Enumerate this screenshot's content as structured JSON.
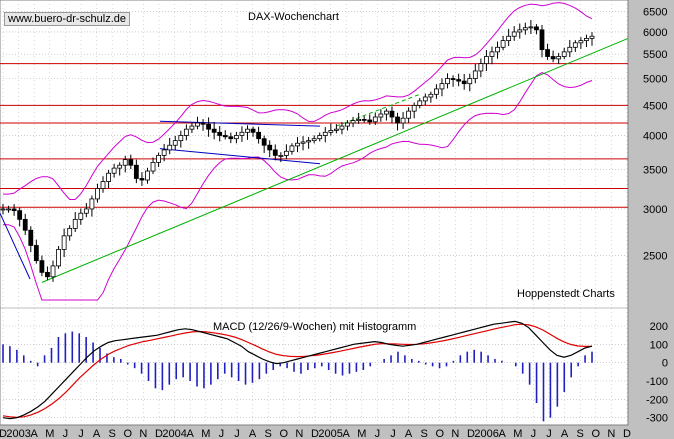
{
  "source_label": "www.buero-dr-schulz.de",
  "chart_data": {
    "type": "line",
    "title": "DAX-Wochenchart",
    "credit": "Hoppenstedt Charts",
    "macd_title": "MACD (12/26/9-Wochen) mit Histogramm",
    "y_scale": "log",
    "ylim": [
      2100,
      6800
    ],
    "y_ticks": [
      6500,
      6000,
      5500,
      5000,
      4500,
      4000,
      3500,
      3000,
      2500
    ],
    "macd_ylim": [
      -340,
      260
    ],
    "macd_ticks": [
      200,
      100,
      0,
      -100,
      -200,
      -300
    ],
    "x_ticks": [
      "D",
      "2003",
      "A",
      "M",
      "J",
      "J",
      "A",
      "S",
      "O",
      "N",
      "D",
      "2004",
      "A",
      "M",
      "J",
      "J",
      "A",
      "S",
      "O",
      "N",
      "D",
      "2005",
      "A",
      "M",
      "J",
      "J",
      "A",
      "S",
      "O",
      "N",
      "D",
      "2006",
      "A",
      "M",
      "J",
      "J",
      "A",
      "S",
      "O",
      "N",
      "D"
    ],
    "horizontal_lines": [
      5300,
      4500,
      4200,
      3650,
      3250,
      3020
    ],
    "price_weekly": [
      3000,
      3000,
      2980,
      2880,
      2760,
      2600,
      2450,
      2340,
      2300,
      2400,
      2560,
      2700,
      2780,
      2880,
      2950,
      3000,
      3120,
      3250,
      3340,
      3450,
      3520,
      3560,
      3640,
      3560,
      3380,
      3360,
      3480,
      3600,
      3700,
      3780,
      3850,
      3920,
      4000,
      4100,
      4150,
      4200,
      4180,
      4100,
      4050,
      4000,
      3980,
      3950,
      4000,
      4050,
      4100,
      4050,
      3950,
      3850,
      3780,
      3700,
      3700,
      3760,
      3840,
      3880,
      3900,
      3920,
      3950,
      4000,
      4050,
      4080,
      4100,
      4150,
      4200,
      4240,
      4260,
      4250,
      4220,
      4300,
      4350,
      4400,
      4300,
      4200,
      4280,
      4400,
      4500,
      4580,
      4650,
      4700,
      4800,
      4900,
      5000,
      4980,
      4950,
      4900,
      5000,
      5150,
      5300,
      5450,
      5550,
      5650,
      5800,
      5900,
      6000,
      6050,
      6100,
      6120,
      6050,
      5600,
      5450,
      5400,
      5450,
      5550,
      5650,
      5750,
      5800,
      5850,
      5900
    ],
    "macd_weekly": [
      -300,
      -305,
      -300,
      -285,
      -265,
      -240,
      -210,
      -170,
      -130,
      -90,
      -50,
      -10,
      30,
      65,
      90,
      110,
      120,
      125,
      130,
      135,
      140,
      145,
      150,
      160,
      170,
      180,
      185,
      180,
      170,
      160,
      150,
      140,
      130,
      110,
      90,
      60,
      40,
      20,
      5,
      -5,
      0,
      10,
      20,
      30,
      40,
      50,
      60,
      70,
      80,
      90,
      100,
      105,
      110,
      115,
      110,
      100,
      95,
      90,
      95,
      100,
      110,
      120,
      130,
      140,
      150,
      160,
      170,
      180,
      190,
      200,
      210,
      215,
      220,
      225,
      215,
      190,
      150,
      110,
      70,
      40,
      30,
      40,
      60,
      80,
      90
    ],
    "signal_weekly": [
      -290,
      -295,
      -298,
      -295,
      -285,
      -270,
      -250,
      -225,
      -195,
      -160,
      -120,
      -80,
      -45,
      -10,
      20,
      45,
      65,
      80,
      95,
      105,
      115,
      122,
      130,
      138,
      146,
      155,
      162,
      168,
      170,
      168,
      163,
      157,
      150,
      140,
      127,
      110,
      93,
      75,
      58,
      45,
      38,
      34,
      33,
      35,
      38,
      42,
      48,
      55,
      62,
      70,
      78,
      86,
      93,
      100,
      104,
      103,
      102,
      100,
      99,
      100,
      103,
      108,
      114,
      121,
      129,
      138,
      147,
      156,
      165,
      174,
      183,
      191,
      199,
      207,
      210,
      206,
      195,
      178,
      156,
      133,
      113,
      99,
      91,
      89,
      89
    ],
    "histogram_weekly": [
      100,
      90,
      70,
      40,
      10,
      -20,
      40,
      80,
      140,
      160,
      170,
      160,
      140,
      110,
      80,
      50,
      30,
      20,
      -10,
      -30,
      -60,
      -100,
      -140,
      -150,
      -120,
      -90,
      -80,
      -100,
      -130,
      -140,
      -120,
      -90,
      -60,
      -80,
      -100,
      -120,
      -110,
      -90,
      -60,
      -40,
      -20,
      -30,
      -50,
      -60,
      -40,
      -30,
      -20,
      -40,
      -60,
      -70,
      -60,
      -50,
      -40,
      -20,
      0,
      20,
      40,
      60,
      40,
      20,
      10,
      -10,
      -20,
      -30,
      -20,
      10,
      40,
      60,
      70,
      60,
      40,
      20,
      10,
      0,
      -20,
      -60,
      -120,
      -220,
      -320,
      -300,
      -240,
      -160,
      -80,
      -20,
      40,
      60
    ]
  }
}
